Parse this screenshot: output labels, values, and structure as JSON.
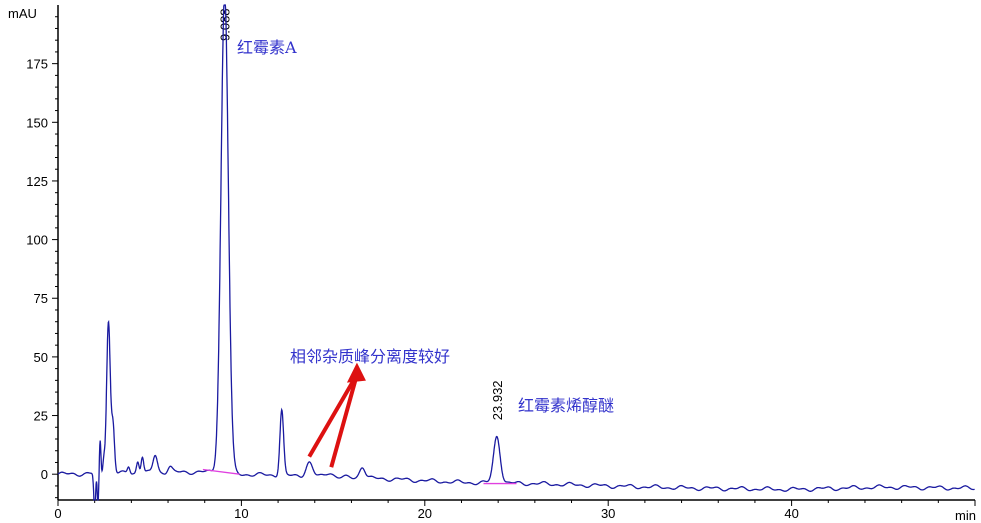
{
  "chart_data": {
    "type": "line",
    "ylabel": "mAU",
    "xlabel": "min",
    "xlim": [
      0,
      50
    ],
    "ylim": [
      -11,
      200
    ],
    "xticks": [
      0,
      10,
      20,
      30,
      40,
      50
    ],
    "yticks": [
      0,
      25,
      50,
      75,
      100,
      125,
      150,
      175
    ],
    "xtick_labels": [
      "0",
      "10",
      "20",
      "30",
      "40",
      ""
    ],
    "line_color": "#1a1aa0",
    "baseline_color": "#e040e0",
    "baseline": [
      [
        0,
        0
      ],
      [
        8,
        1
      ],
      [
        10,
        0
      ],
      [
        14,
        -1
      ],
      [
        18,
        -2
      ],
      [
        22,
        -3.5
      ],
      [
        26,
        -4
      ],
      [
        30,
        -5
      ],
      [
        35,
        -6
      ],
      [
        40,
        -6.5
      ],
      [
        45,
        -5.5
      ],
      [
        50,
        -6
      ]
    ],
    "peaks": [
      {
        "rt": 2.0,
        "height": -16,
        "width": 0.05
      },
      {
        "rt": 2.18,
        "height": -14,
        "width": 0.04
      },
      {
        "rt": 2.3,
        "height": 14,
        "width": 0.04
      },
      {
        "rt": 2.5,
        "height": 6,
        "width": 0.05
      },
      {
        "rt": 2.75,
        "height": 65,
        "width": 0.1
      },
      {
        "rt": 3.0,
        "height": 20,
        "width": 0.08
      },
      {
        "rt": 3.85,
        "height": 3,
        "width": 0.07
      },
      {
        "rt": 4.35,
        "height": 5,
        "width": 0.07
      },
      {
        "rt": 4.6,
        "height": 7,
        "width": 0.07
      },
      {
        "rt": 5.3,
        "height": 7.5,
        "width": 0.12
      },
      {
        "rt": 6.1,
        "height": 2.5,
        "width": 0.12
      },
      {
        "rt": 9.088,
        "height": 205,
        "width": 0.2
      },
      {
        "rt": 12.2,
        "height": 28,
        "width": 0.1
      },
      {
        "rt": 13.7,
        "height": 6,
        "width": 0.18
      },
      {
        "rt": 14.8,
        "height": 2,
        "width": 0.2
      },
      {
        "rt": 16.6,
        "height": 5,
        "width": 0.15
      },
      {
        "rt": 23.932,
        "height": 20,
        "width": 0.18
      }
    ],
    "integration_baselines": [
      [
        [
          7.9,
          2
        ],
        [
          9.9,
          0
        ]
      ],
      [
        [
          23.2,
          -4
        ],
        [
          25.0,
          -4
        ]
      ]
    ],
    "peak_labels": [
      {
        "rt": 9.088,
        "label": "9.088"
      },
      {
        "rt": 23.932,
        "label": "23.932"
      }
    ],
    "annotations": {
      "peak_a": "红霉素A",
      "impurity": "相邻杂质峰分离度较好",
      "enol_ether": "红霉素烯醇醚"
    },
    "arrow_color": "#dd1111"
  }
}
